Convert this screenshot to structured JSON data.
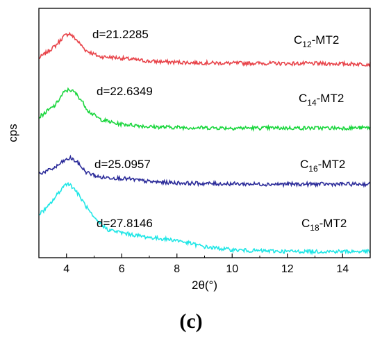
{
  "panel_label": "(c)",
  "chart_data": {
    "type": "line",
    "xlabel": "2θ(°)",
    "ylabel": "cps",
    "xlim": [
      3,
      15
    ],
    "xticks": [
      4,
      6,
      8,
      10,
      12,
      14
    ],
    "xtick_labels": [
      "4",
      "6",
      "8",
      "10",
      "12",
      "14"
    ],
    "y_ticks_shown": false,
    "grid": false,
    "legend": "none",
    "series": [
      {
        "name": "C12-MT2",
        "label_main": "C",
        "label_sub": "12",
        "label_suffix": "-MT2",
        "annotation": "d=21.2285",
        "color": "#e8444a",
        "x": [
          3.0,
          3.3,
          3.6,
          3.9,
          4.1,
          4.35,
          4.7,
          5.2,
          5.8,
          6.3,
          7.0,
          8.0,
          9.0,
          10.0,
          11.0,
          12.0,
          13.0,
          14.0,
          15.0
        ],
        "y": [
          0.62,
          0.64,
          0.66,
          0.69,
          0.7,
          0.68,
          0.645,
          0.625,
          0.622,
          0.617,
          0.61,
          0.607,
          0.605,
          0.604,
          0.604,
          0.603,
          0.603,
          0.602,
          0.601
        ]
      },
      {
        "name": "C14-MT2",
        "label_main": "C",
        "label_sub": "14",
        "label_suffix": "-MT2",
        "annotation": "d=22.6349",
        "color": "#19d63c",
        "x": [
          3.0,
          3.3,
          3.6,
          3.9,
          4.1,
          4.3,
          4.5,
          4.8,
          5.2,
          5.8,
          6.5,
          7.0,
          8.0,
          9.0,
          10.0,
          11.0,
          12.0,
          13.0,
          14.0,
          15.0
        ],
        "y": [
          0.43,
          0.45,
          0.47,
          0.51,
          0.52,
          0.51,
          0.49,
          0.45,
          0.425,
          0.41,
          0.405,
          0.4,
          0.398,
          0.397,
          0.396,
          0.396,
          0.396,
          0.396,
          0.396,
          0.397
        ]
      },
      {
        "name": "C16-MT2",
        "label_main": "C",
        "label_sub": "16",
        "label_suffix": "-MT2",
        "annotation": "d=25.0957",
        "color": "#2c2c9a",
        "x": [
          3.0,
          3.3,
          3.6,
          3.9,
          4.15,
          4.4,
          4.7,
          5.2,
          5.8,
          6.3,
          7.0,
          8.0,
          9.0,
          10.0,
          11.0,
          12.0,
          13.0,
          14.0,
          15.0
        ],
        "y": [
          0.25,
          0.258,
          0.27,
          0.29,
          0.3,
          0.285,
          0.255,
          0.238,
          0.236,
          0.232,
          0.224,
          0.22,
          0.218,
          0.217,
          0.216,
          0.216,
          0.216,
          0.216,
          0.216
        ]
      },
      {
        "name": "C18-MT2",
        "label_main": "C",
        "label_sub": "18",
        "label_suffix": "-MT2",
        "annotation": "d=27.8146",
        "color": "#1fe6e6",
        "x": [
          3.0,
          3.3,
          3.6,
          3.9,
          4.05,
          4.3,
          4.6,
          5.0,
          5.5,
          6.0,
          6.5,
          7.0,
          8.0,
          9.0,
          10.0,
          11.0,
          12.0,
          13.0,
          14.0,
          15.0
        ],
        "y": [
          0.12,
          0.14,
          0.175,
          0.21,
          0.22,
          0.2,
          0.16,
          0.105,
          0.07,
          0.06,
          0.052,
          0.045,
          0.036,
          0.015,
          0.005,
          0.002,
          0.0,
          0.0,
          0.0,
          0.0
        ]
      }
    ]
  }
}
